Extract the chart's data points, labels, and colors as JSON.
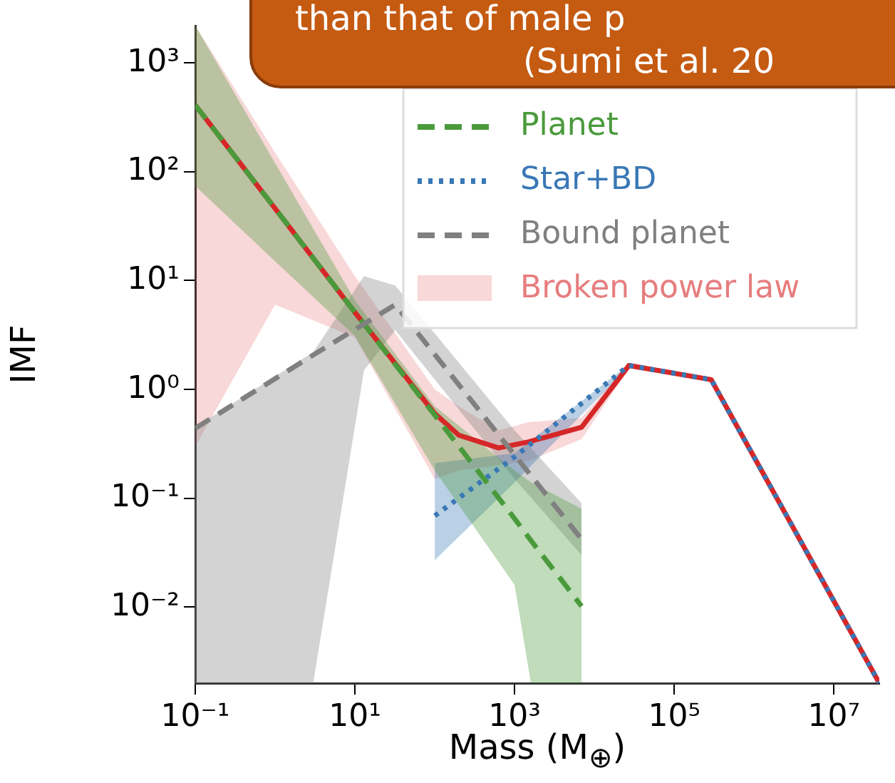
{
  "chart_data": {
    "type": "line",
    "ylabel": "IMF",
    "xlabel": "Mass (M$_{⊕}$)",
    "annotations": [
      "than that of male p",
      "(Sumi et al. 20"
    ],
    "log": "xy",
    "legend": "top right",
    "grid": false,
    "xlim": [
      0.1,
      37000000
    ],
    "ylim": [
      0.002,
      2200
    ],
    "xticks": [
      {
        "value": 0.1,
        "label": "10⁻¹"
      },
      {
        "value": 10,
        "label": "10¹"
      },
      {
        "value": 1000,
        "label": "10³"
      },
      {
        "value": 100000,
        "label": "10⁵"
      },
      {
        "value": 10000000,
        "label": "10⁷"
      }
    ],
    "yticks": [
      {
        "value": 0.01,
        "label": "10⁻²"
      },
      {
        "value": 0.1,
        "label": "10⁻¹"
      },
      {
        "value": 1,
        "label": "10⁰"
      },
      {
        "value": 10,
        "label": "10¹"
      },
      {
        "value": 100,
        "label": "10²"
      },
      {
        "value": 1000,
        "label": "10³"
      }
    ],
    "series": [
      {
        "name": "Planet",
        "color": "#4a9a3c",
        "line_style": "dashed",
        "x": [
          0.1,
          1,
          10,
          100,
          1000,
          1600,
          6900
        ],
        "values": [
          410,
          46,
          5.1,
          0.58,
          0.065,
          0.041,
          0.0102
        ],
        "lower": [
          74,
          15,
          3.1,
          0.18,
          0.016,
          0.002,
          0.002
        ],
        "upper": [
          2200,
          120,
          6.6,
          0.7,
          0.18,
          0.14,
          0.08
        ]
      },
      {
        "name": "Star+BD",
        "color": "#3a78b5",
        "line_style": "dotted",
        "x": [
          100,
          1000,
          27000,
          290000,
          37000000
        ],
        "values": [
          0.069,
          0.24,
          1.66,
          1.23,
          0.002
        ],
        "lower": [
          0.027,
          0.14,
          1.6,
          1.23,
          0.002
        ],
        "upper": [
          0.21,
          0.26,
          1.7,
          1.23,
          0.002
        ]
      },
      {
        "name": "Bound planet",
        "color": "#808080",
        "line_style": "dashed",
        "x": [
          0.1,
          3,
          13,
          32,
          1000,
          6900
        ],
        "values": [
          0.44,
          2.07,
          4.0,
          6.0,
          0.25,
          0.042
        ],
        "lower": [
          0.002,
          0.002,
          1.5,
          3.5,
          0.15,
          0.03
        ],
        "upper": [
          0.45,
          2.2,
          11,
          9,
          0.42,
          0.09
        ]
      },
      {
        "name": "Broken power law",
        "color": "#d62728",
        "line_style": "solid",
        "x": [
          0.1,
          1,
          10,
          100,
          200,
          630,
          1500,
          6900,
          27000,
          290000,
          37000000
        ],
        "values": [
          410,
          46,
          5.1,
          0.6,
          0.38,
          0.29,
          0.33,
          0.45,
          1.66,
          1.23,
          0.002
        ],
        "lower": [
          0.3,
          6,
          3.0,
          0.15,
          0.18,
          0.2,
          0.22,
          0.35,
          1.55,
          1.2,
          0.002
        ],
        "upper": [
          2200,
          150,
          11,
          1.0,
          0.7,
          0.42,
          0.5,
          0.55,
          1.75,
          1.26,
          0.002
        ]
      }
    ]
  }
}
